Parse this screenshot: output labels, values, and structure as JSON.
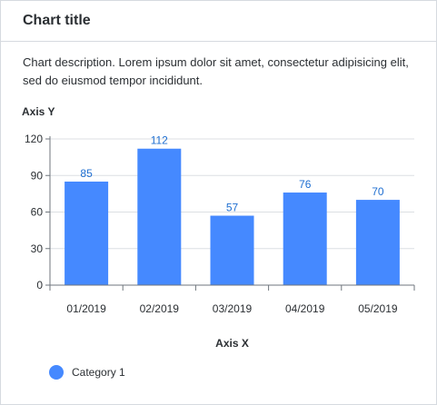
{
  "card": {
    "title": "Chart title",
    "description": "Chart description. Lorem ipsum dolor sit amet, consectetur adipisicing elit, sed do eiusmod tempor incididunt."
  },
  "chart_data": {
    "type": "bar",
    "title": "Chart title",
    "xlabel": "Axis X",
    "ylabel": "Axis Y",
    "categories": [
      "01/2019",
      "02/2019",
      "03/2019",
      "04/2019",
      "05/2019"
    ],
    "series": [
      {
        "name": "Category 1",
        "values": [
          85,
          112,
          57,
          76,
          70
        ]
      }
    ],
    "ylim": [
      0,
      120
    ],
    "yticks": [
      0,
      30,
      60,
      90,
      120
    ],
    "grid": true,
    "data_labels": true,
    "legend_placement": "bottom-left",
    "colors": {
      "bar": "#4589ff",
      "data_label": "#1f6fd1",
      "grid": "#dcdfe3",
      "axis": "#6f767d"
    }
  }
}
